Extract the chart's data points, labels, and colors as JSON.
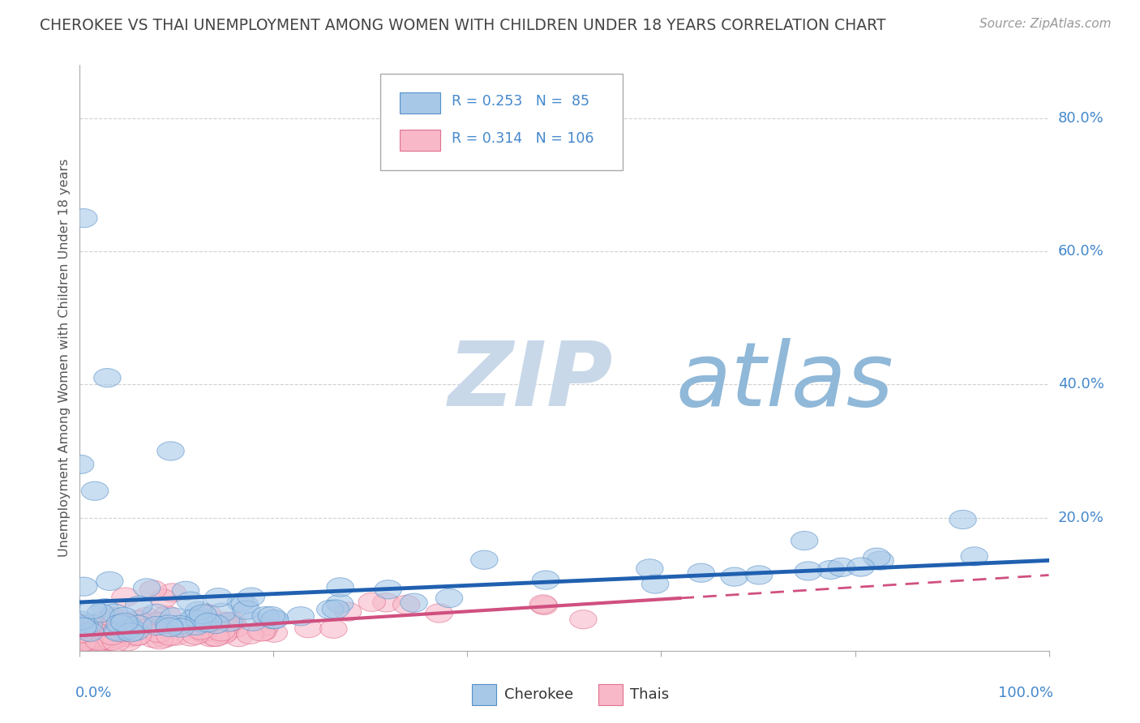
{
  "title": "CHEROKEE VS THAI UNEMPLOYMENT AMONG WOMEN WITH CHILDREN UNDER 18 YEARS CORRELATION CHART",
  "source": "Source: ZipAtlas.com",
  "ylabel": "Unemployment Among Women with Children Under 18 years",
  "legend_cherokee": "Cherokee",
  "legend_thais": "Thais",
  "cherokee_R": "0.253",
  "cherokee_N": "85",
  "thais_R": "0.314",
  "thais_N": "106",
  "blue_fill": "#a8c8e8",
  "blue_edge": "#5590c8",
  "pink_fill": "#f8b8c8",
  "pink_edge": "#e07090",
  "blue_line": "#2060b0",
  "pink_line": "#d05080",
  "watermark_zip": "#c8d8e8",
  "watermark_atlas": "#90b8d8",
  "title_color": "#444444",
  "label_color": "#4488cc",
  "black_text": "#333333",
  "grid_color": "#cccccc",
  "spine_color": "#aaaaaa",
  "legend_edge": "#aaaaaa",
  "xlim": [
    0.0,
    1.0
  ],
  "ylim": [
    0.0,
    0.88
  ],
  "cherokee_seed": 7,
  "thais_seed": 13
}
